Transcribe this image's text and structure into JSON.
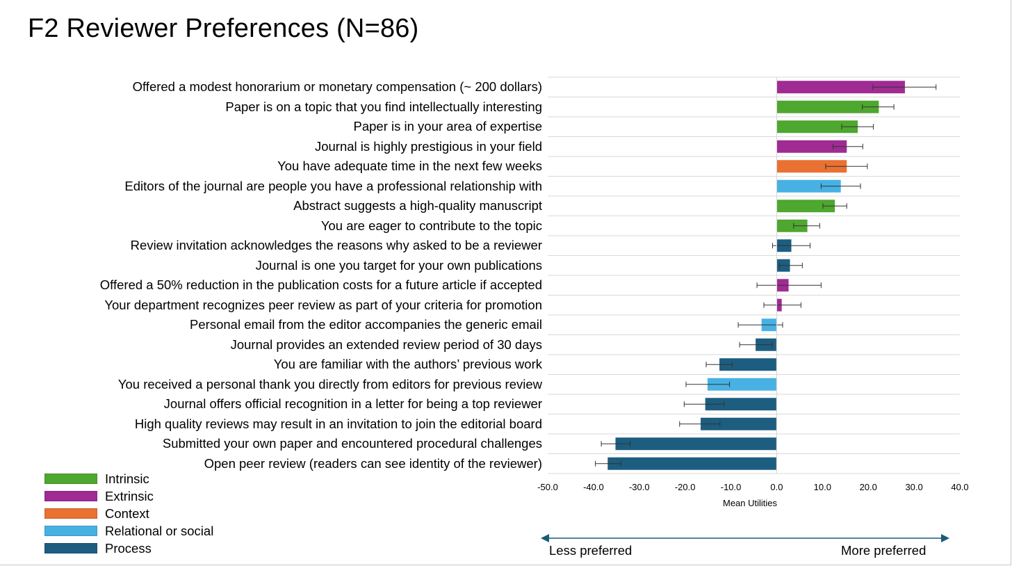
{
  "title": "F2 Reviewer Preferences (N=86)",
  "chart_data": {
    "type": "bar",
    "orientation": "horizontal",
    "title": "F2 Reviewer Preferences (N=86)",
    "xlabel": "Mean Utilities",
    "xlim": [
      -50,
      40
    ],
    "xticks": [
      -50,
      -40,
      -30,
      -20,
      -10,
      0,
      10,
      20,
      30,
      40
    ],
    "xtick_labels": [
      "-50.0",
      "-40.0",
      "-30.0",
      "-20.0",
      "-10.0",
      "0.0",
      "10.0",
      "20.0",
      "30.0",
      "40.0"
    ],
    "gridlines": true,
    "categories": [
      "Offered a modest honorarium or monetary compensation (~ 200 dollars)",
      "Paper is on a topic that you find intellectually interesting",
      "Paper is in your area of expertise",
      "Journal is highly prestigious in your field",
      "You have adequate time in the next few weeks",
      "Editors of the journal are people you have a professional relationship with",
      "Abstract suggests a high-quality manuscript",
      "You are eager to contribute to the topic",
      "Review invitation acknowledges the reasons why asked to be a reviewer",
      "Journal is one you target for your own publications",
      "Offered a 50% reduction in the publication costs for a future article if accepted",
      "Your department recognizes peer review as part of your criteria for promotion",
      "Personal email from the editor accompanies the generic email",
      "Journal provides an extended review period of 30 days",
      "You are familiar with the authors’ previous work",
      "You received a personal thank you directly from editors for previous review",
      "Journal offers official recognition in a letter for being a top reviewer",
      "High quality reviews may result in an invitation to join the editorial board",
      "Submitted your own paper and encountered procedural challenges",
      "Open peer review (readers can see identity of the reviewer)"
    ],
    "values": [
      28.0,
      22.3,
      17.7,
      15.3,
      15.3,
      14.0,
      12.7,
      6.7,
      3.2,
      2.9,
      2.6,
      1.1,
      -3.3,
      -4.6,
      -12.5,
      -15.1,
      -15.6,
      -16.6,
      -35.2,
      -36.9
    ],
    "error_low": [
      21.0,
      18.7,
      14.2,
      12.3,
      10.7,
      9.7,
      10.1,
      3.7,
      -0.9,
      0.6,
      -4.3,
      -2.8,
      -8.4,
      -8.1,
      -15.4,
      -19.8,
      -20.2,
      -21.2,
      -38.3,
      -39.6
    ],
    "error_high": [
      34.8,
      25.6,
      21.1,
      18.8,
      19.8,
      18.3,
      15.3,
      9.4,
      7.3,
      5.6,
      9.7,
      5.3,
      1.3,
      -1.0,
      -9.7,
      -10.3,
      -11.5,
      -12.4,
      -32.0,
      -34.0
    ],
    "groups": [
      "Extrinsic",
      "Intrinsic",
      "Intrinsic",
      "Extrinsic",
      "Context",
      "Relational or social",
      "Intrinsic",
      "Intrinsic",
      "Process",
      "Process",
      "Extrinsic",
      "Extrinsic",
      "Relational or social",
      "Process",
      "Process",
      "Relational or social",
      "Process",
      "Process",
      "Process",
      "Process"
    ],
    "legend": [
      {
        "name": "Intrinsic",
        "color": "#4ea72e"
      },
      {
        "name": "Extrinsic",
        "color": "#a02b93"
      },
      {
        "name": "Context",
        "color": "#e97132"
      },
      {
        "name": "Relational or social",
        "color": "#47b1e4"
      },
      {
        "name": "Process",
        "color": "#1d5d80"
      }
    ],
    "legend_position": "bottom-left",
    "arrow_labels": {
      "left": "Less preferred",
      "right": "More preferred"
    }
  }
}
